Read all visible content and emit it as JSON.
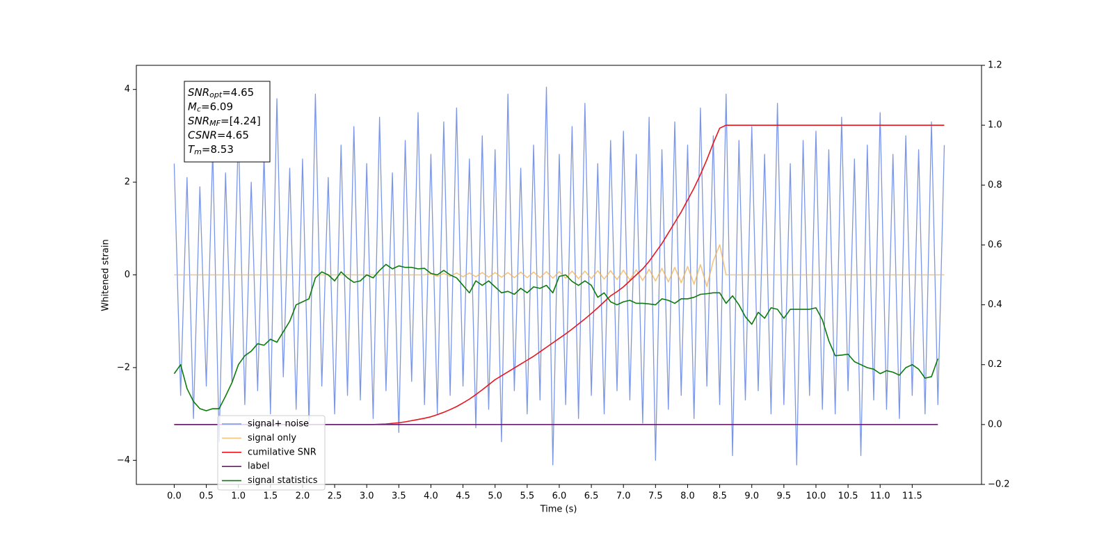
{
  "chart_data": {
    "type": "line",
    "xlabel": "Time (s)",
    "ylabel": "Whitened strain",
    "legend": "lower left",
    "annotation": [
      {
        "text": "SNR",
        "sub": "opt",
        "value": "=4.65"
      },
      {
        "text": "M",
        "sub": "c",
        "value": "=6.09"
      },
      {
        "text": "SNR",
        "sub": "MF",
        "value": "=[4.24]"
      },
      {
        "text": "CSNR",
        "value": "=4.65"
      },
      {
        "text": "T",
        "sub": "m",
        "value": "=8.53"
      }
    ],
    "xlim": [
      -0.59,
      12.58
    ],
    "ylim": [
      -4.52,
      4.52
    ],
    "y2lim": [
      -0.2,
      1.2
    ],
    "xticks": [
      {
        "value": 0,
        "label": "0.0"
      },
      0.5,
      {
        "value": 1,
        "label": "1.0"
      },
      1.5,
      {
        "value": 2,
        "label": "2.0"
      },
      2.5,
      {
        "value": 3,
        "label": "3.0"
      },
      3.5,
      {
        "value": 4,
        "label": "4.0"
      },
      4.5,
      {
        "value": 5,
        "label": "5.0"
      },
      5.5,
      {
        "value": 6,
        "label": "6.0"
      },
      6.5,
      {
        "value": 7,
        "label": "7.0"
      },
      7.5,
      {
        "value": 8,
        "label": "8.0"
      },
      8.5,
      {
        "value": 9,
        "label": "9.0"
      },
      9.5,
      {
        "value": 10,
        "label": "10.0"
      },
      10.5,
      {
        "value": 11,
        "label": "11.0"
      },
      11.5
    ],
    "yticks": [
      {
        "value": -4,
        "label": "−4"
      },
      {
        "value": -2,
        "label": "−2"
      },
      0,
      2,
      4
    ],
    "y2ticks": [
      {
        "value": -0.2,
        "label": "−0.2"
      },
      {
        "value": 0,
        "label": "0.0"
      },
      0.2,
      0.4,
      0.6,
      0.8,
      {
        "value": 1,
        "label": "1.0"
      },
      1.2
    ],
    "x": [
      0,
      0.1,
      0.2,
      0.3,
      0.4,
      0.5,
      0.6,
      0.7,
      0.8,
      0.9,
      1,
      1.1,
      1.2,
      1.3,
      1.4,
      1.5,
      1.6,
      1.7,
      1.8,
      1.9,
      2,
      2.1,
      2.2,
      2.3,
      2.4,
      2.5,
      2.6,
      2.7,
      2.8,
      2.9,
      3,
      3.1,
      3.2,
      3.3,
      3.4,
      3.5,
      3.6,
      3.7,
      3.8,
      3.9,
      4,
      4.1,
      4.2,
      4.3,
      4.4,
      4.5,
      4.6,
      4.7,
      4.8,
      4.9,
      5,
      5.1,
      5.2,
      5.3,
      5.4,
      5.5,
      5.6,
      5.7,
      5.8,
      5.9,
      6,
      6.1,
      6.2,
      6.3,
      6.4,
      6.5,
      6.6,
      6.7,
      6.8,
      6.9,
      7,
      7.1,
      7.2,
      7.3,
      7.4,
      7.5,
      7.6,
      7.7,
      7.8,
      7.9,
      8,
      8.1,
      8.2,
      8.3,
      8.4,
      8.5,
      8.6,
      8.7,
      8.8,
      8.9,
      9,
      9.1,
      9.2,
      9.3,
      9.4,
      9.5,
      9.6,
      9.7,
      9.8,
      9.9,
      10,
      10.1,
      10.2,
      10.3,
      10.4,
      10.5,
      10.6,
      10.7,
      10.8,
      10.9,
      11,
      11.1,
      11.2,
      11.3,
      11.4,
      11.5,
      11.6,
      11.7,
      11.8,
      11.9,
      12
    ],
    "series": [
      {
        "name": "signal+ noise",
        "color": "#7b96e8",
        "values": [
          2.4,
          -2.6,
          2.1,
          -3.1,
          1.9,
          -2.4,
          2.7,
          -3.6,
          2.2,
          -2.3,
          3.1,
          -2.8,
          2.0,
          -2.5,
          2.6,
          -3.0,
          3.8,
          -2.2,
          2.3,
          -2.9,
          2.5,
          -3.2,
          3.9,
          -2.4,
          2.1,
          -3.0,
          2.8,
          -2.6,
          3.2,
          -2.7,
          2.4,
          -3.1,
          3.4,
          -2.5,
          2.2,
          -3.4,
          2.9,
          -2.3,
          3.5,
          -2.8,
          2.6,
          -3.0,
          3.3,
          -2.6,
          3.6,
          -2.4,
          2.5,
          -3.3,
          3.0,
          -2.9,
          2.7,
          -3.6,
          3.9,
          -2.5,
          2.3,
          -3.0,
          2.8,
          -2.7,
          4.05,
          -4.1,
          2.6,
          -2.8,
          3.2,
          -3.1,
          3.7,
          -2.6,
          2.4,
          -3.0,
          2.9,
          -2.5,
          3.1,
          -2.7,
          2.6,
          -3.2,
          3.4,
          -4.0,
          2.7,
          -2.9,
          3.3,
          -2.6,
          2.8,
          -3.1,
          3.6,
          -2.4,
          3.0,
          -2.8,
          3.9,
          -3.9,
          2.9,
          -2.7,
          3.2,
          -2.5,
          2.6,
          -3.0,
          3.7,
          -2.8,
          2.4,
          -4.1,
          2.9,
          -2.6,
          3.1,
          -2.9,
          2.7,
          -3.0,
          3.4,
          -2.5,
          2.5,
          -3.9,
          2.8,
          -2.7,
          3.5,
          -2.9,
          2.6,
          -3.1,
          3.0,
          -2.6,
          2.7,
          -3.0,
          3.3,
          -2.8,
          2.8
        ]
      },
      {
        "name": "signal only",
        "color": "#f0b050",
        "values": [
          0,
          0,
          0,
          0,
          0,
          0,
          0,
          0,
          0,
          0,
          0,
          0,
          0,
          0,
          0,
          0,
          0,
          0,
          0,
          0,
          0,
          0,
          0,
          0,
          0,
          0,
          0,
          0,
          0,
          0,
          0,
          0,
          0,
          0,
          0,
          0,
          0,
          0,
          0,
          0,
          0.02,
          -0.03,
          0.03,
          -0.03,
          0.04,
          -0.04,
          0.04,
          -0.04,
          0.05,
          -0.05,
          0.05,
          -0.05,
          0.05,
          -0.06,
          0.06,
          -0.06,
          0.06,
          -0.06,
          0.07,
          -0.07,
          0.07,
          -0.07,
          0.08,
          -0.08,
          0.08,
          -0.08,
          0.09,
          -0.09,
          0.09,
          -0.1,
          0.1,
          -0.11,
          0.11,
          -0.12,
          0.12,
          -0.13,
          0.14,
          -0.15,
          0.16,
          -0.17,
          0.18,
          -0.2,
          0.22,
          -0.25,
          0.3,
          0.65,
          0,
          0,
          0,
          0,
          0,
          0,
          0,
          0,
          0,
          0,
          0,
          0,
          0,
          0,
          0,
          0,
          0,
          0,
          0,
          0,
          0,
          0,
          0,
          0,
          0,
          0,
          0,
          0,
          0,
          0,
          0,
          0,
          0,
          0,
          0
        ]
      },
      {
        "name": "cumilative SNR",
        "color": "#e8141c",
        "axis": "y2",
        "values": [
          0,
          0,
          0,
          0,
          0,
          0,
          0,
          0,
          0,
          0,
          0,
          0,
          0,
          0,
          0,
          0,
          0,
          0,
          0,
          0,
          0,
          0,
          0,
          0,
          0,
          0,
          0,
          0,
          0,
          0,
          0,
          0,
          0.001,
          0.002,
          0.004,
          0.006,
          0.009,
          0.013,
          0.017,
          0.021,
          0.026,
          0.033,
          0.041,
          0.05,
          0.06,
          0.072,
          0.085,
          0.1,
          0.116,
          0.133,
          0.15,
          0.163,
          0.176,
          0.189,
          0.202,
          0.215,
          0.228,
          0.243,
          0.258,
          0.273,
          0.288,
          0.303,
          0.319,
          0.336,
          0.353,
          0.371,
          0.39,
          0.41,
          0.43,
          0.444,
          0.46,
          0.48,
          0.5,
          0.52,
          0.545,
          0.575,
          0.605,
          0.64,
          0.675,
          0.71,
          0.75,
          0.79,
          0.835,
          0.885,
          0.94,
          0.99,
          1,
          1,
          1,
          1,
          1,
          1,
          1,
          1,
          1,
          1,
          1,
          1,
          1,
          1,
          1,
          1,
          1,
          1,
          1,
          1,
          1,
          1,
          1,
          1,
          1,
          1,
          1,
          1,
          1,
          1,
          1,
          1,
          1,
          1,
          1
        ]
      },
      {
        "name": "label",
        "color": "#6a1a6e",
        "axis": "y2",
        "values": [
          0,
          0,
          0,
          0,
          0,
          0,
          0,
          0,
          0,
          0,
          0,
          0,
          0,
          0,
          0,
          0,
          0,
          0,
          0,
          0,
          0,
          0,
          0,
          0,
          0,
          0,
          0,
          0,
          0,
          0,
          0,
          0,
          0,
          0,
          0,
          0,
          0,
          0,
          0,
          0,
          0,
          0,
          0,
          0,
          0,
          0,
          0,
          0,
          0,
          0,
          0,
          0,
          0,
          0,
          0,
          0,
          0,
          0,
          0,
          0,
          0,
          0,
          0,
          0,
          0,
          0,
          0,
          0,
          0,
          0,
          0,
          0,
          0,
          0,
          0,
          0,
          0,
          0,
          0,
          0,
          0,
          0,
          0,
          0,
          0,
          0,
          0,
          0,
          0,
          0,
          0,
          0,
          0,
          0,
          0,
          0,
          0,
          0,
          0,
          0,
          0,
          0,
          0,
          0,
          0,
          0,
          0,
          0,
          0,
          0,
          0,
          0,
          0,
          0,
          0,
          0,
          0,
          0,
          0,
          0,
          null
        ]
      },
      {
        "name": "signal statistics",
        "color": "#0a7a0a",
        "axis": "y2",
        "values": [
          0.17,
          0.2,
          0.12,
          0.077,
          0.053,
          0.046,
          0.053,
          0.053,
          0.095,
          0.14,
          0.2,
          0.23,
          0.245,
          0.27,
          0.265,
          0.285,
          0.275,
          0.31,
          0.345,
          0.4,
          0.41,
          0.42,
          0.49,
          0.51,
          0.5,
          0.48,
          0.51,
          0.49,
          0.475,
          0.48,
          0.5,
          0.49,
          0.515,
          0.535,
          0.52,
          0.53,
          0.525,
          0.525,
          0.52,
          0.522,
          0.505,
          0.5,
          0.515,
          0.5,
          0.49,
          0.465,
          0.44,
          0.48,
          0.465,
          0.48,
          0.46,
          0.44,
          0.445,
          0.435,
          0.455,
          0.44,
          0.46,
          0.455,
          0.465,
          0.44,
          0.495,
          0.5,
          0.478,
          0.465,
          0.48,
          0.465,
          0.425,
          0.44,
          0.41,
          0.4,
          0.41,
          0.415,
          0.405,
          0.405,
          0.403,
          0.4,
          0.42,
          0.415,
          0.405,
          0.42,
          0.42,
          0.425,
          0.435,
          0.437,
          0.44,
          0.44,
          0.405,
          0.43,
          0.4,
          0.36,
          0.335,
          0.375,
          0.355,
          0.39,
          0.385,
          0.355,
          0.385,
          0.385,
          0.385,
          0.385,
          0.39,
          0.35,
          0.28,
          0.23,
          0.232,
          0.235,
          0.21,
          0.2,
          0.19,
          0.185,
          0.17,
          0.18,
          0.175,
          0.165,
          0.19,
          0.2,
          0.185,
          0.155,
          0.16,
          0.22,
          null
        ]
      }
    ]
  }
}
